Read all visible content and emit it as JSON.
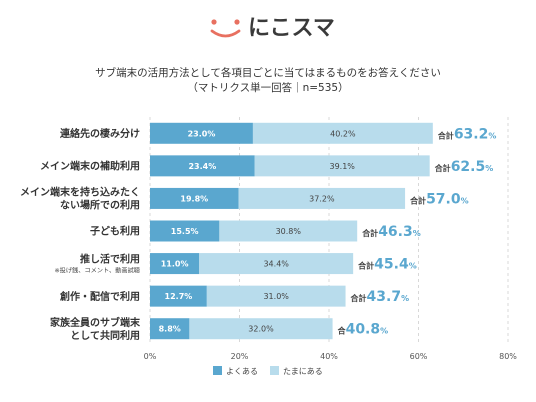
{
  "logo": {
    "text": "にこスマ",
    "icon": "smile-face-icon",
    "icon_color": "#e87060"
  },
  "title": {
    "line1": "サブ端末の活用方法として各項目ごとに当てはまるものをお答えください",
    "line2": "（マトリクス単一回答｜n=535）"
  },
  "chart_data": {
    "type": "bar",
    "stacked": true,
    "orientation": "horizontal",
    "categories": [
      {
        "label": [
          "連絡先の棲み分け"
        ]
      },
      {
        "label": [
          "メイン端末の補助利用"
        ]
      },
      {
        "label": [
          "メイン端末を持ち込みたく",
          "ない場所での利用"
        ]
      },
      {
        "label": [
          "子ども利用"
        ]
      },
      {
        "label": [
          "推し活で利用"
        ],
        "sublabel": "※投げ銭、コメント、動画試聴"
      },
      {
        "label": [
          "創作・配信で利用"
        ]
      },
      {
        "label": [
          "家族全員のサブ端末",
          "として共同利用"
        ]
      }
    ],
    "series": [
      {
        "name": "よくある",
        "color": "#5aa7cf",
        "values": [
          23.0,
          23.4,
          19.8,
          15.5,
          11.0,
          12.7,
          8.8
        ]
      },
      {
        "name": "たまにある",
        "color": "#b8dcec",
        "values": [
          40.2,
          39.1,
          37.2,
          30.8,
          34.4,
          31.0,
          32.0
        ]
      }
    ],
    "value_labels": [
      "23.0%",
      "23.4%",
      "19.8%",
      "15.5%",
      "11.0%",
      "12.7%",
      "8.8%"
    ],
    "value_labels2": [
      "40.2%",
      "39.1%",
      "37.2%",
      "30.8%",
      "34.4%",
      "31.0%",
      "32.0%"
    ],
    "totals": [
      {
        "prefix": "合計",
        "value": "63.2",
        "unit": "%"
      },
      {
        "prefix": "合計",
        "value": "62.5",
        "unit": "%"
      },
      {
        "prefix": "合計",
        "value": "57.0",
        "unit": "%"
      },
      {
        "prefix": "合計",
        "value": "46.3",
        "unit": "%"
      },
      {
        "prefix": "合計",
        "value": "45.4",
        "unit": "%"
      },
      {
        "prefix": "合計",
        "value": "43.7",
        "unit": "%"
      },
      {
        "prefix": "合",
        "value": "40.8",
        "unit": "%"
      }
    ],
    "total_color": "#5aa7cf",
    "xlim": [
      0,
      80
    ],
    "xticks": [
      0,
      20,
      40,
      60,
      80
    ],
    "xtick_labels": [
      "0%",
      "20%",
      "40%",
      "60%",
      "80%"
    ],
    "grid": true,
    "legend_position": "bottom"
  }
}
